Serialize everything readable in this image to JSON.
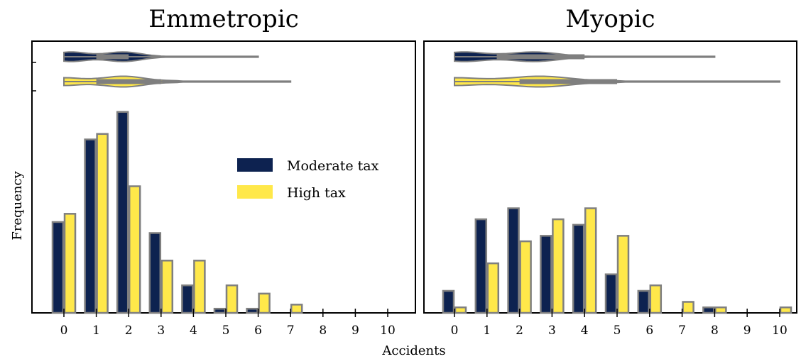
{
  "chart_data": {
    "type": "bar",
    "xlabel": "Accidents",
    "ylabel": "Frequency",
    "categories": [
      "0",
      "1",
      "2",
      "3",
      "4",
      "5",
      "6",
      "7",
      "8",
      "9",
      "10"
    ],
    "colors": {
      "Moderate tax": "#0d2250",
      "High tax": "#ffe84a",
      "edge": "#7f7f7f"
    },
    "legend": {
      "position": "center-right of left panel",
      "entries": [
        "Moderate tax",
        "High tax"
      ]
    },
    "panels": [
      {
        "title": "Emmetropic",
        "series": [
          {
            "name": "Moderate tax",
            "values": [
              33,
              63,
              73,
              29,
              10,
              1.5,
              1.5,
              0,
              0,
              0,
              0
            ]
          },
          {
            "name": "High tax",
            "values": [
              36,
              65,
              46,
              19,
              19,
              10,
              7,
              3,
              0,
              0,
              0
            ]
          }
        ],
        "violins": [
          {
            "series": "Moderate tax",
            "range": [
              0,
              6
            ],
            "q1": 1,
            "q3": 2
          },
          {
            "series": "High tax",
            "range": [
              0,
              7
            ],
            "q1": 1,
            "q3": 3
          }
        ]
      },
      {
        "title": "Myopic",
        "series": [
          {
            "name": "Moderate tax",
            "values": [
              8,
              34,
              38,
              28,
              32,
              14,
              8,
              0,
              2,
              0,
              0
            ]
          },
          {
            "name": "High tax",
            "values": [
              2,
              18,
              26,
              34,
              38,
              28,
              10,
              4,
              2,
              0,
              2
            ]
          }
        ],
        "violins": [
          {
            "series": "Moderate tax",
            "range": [
              0,
              8
            ],
            "q1": 1.3,
            "q3": 4
          },
          {
            "series": "High tax",
            "range": [
              0,
              10
            ],
            "q1": 2,
            "q3": 5
          }
        ]
      }
    ]
  }
}
